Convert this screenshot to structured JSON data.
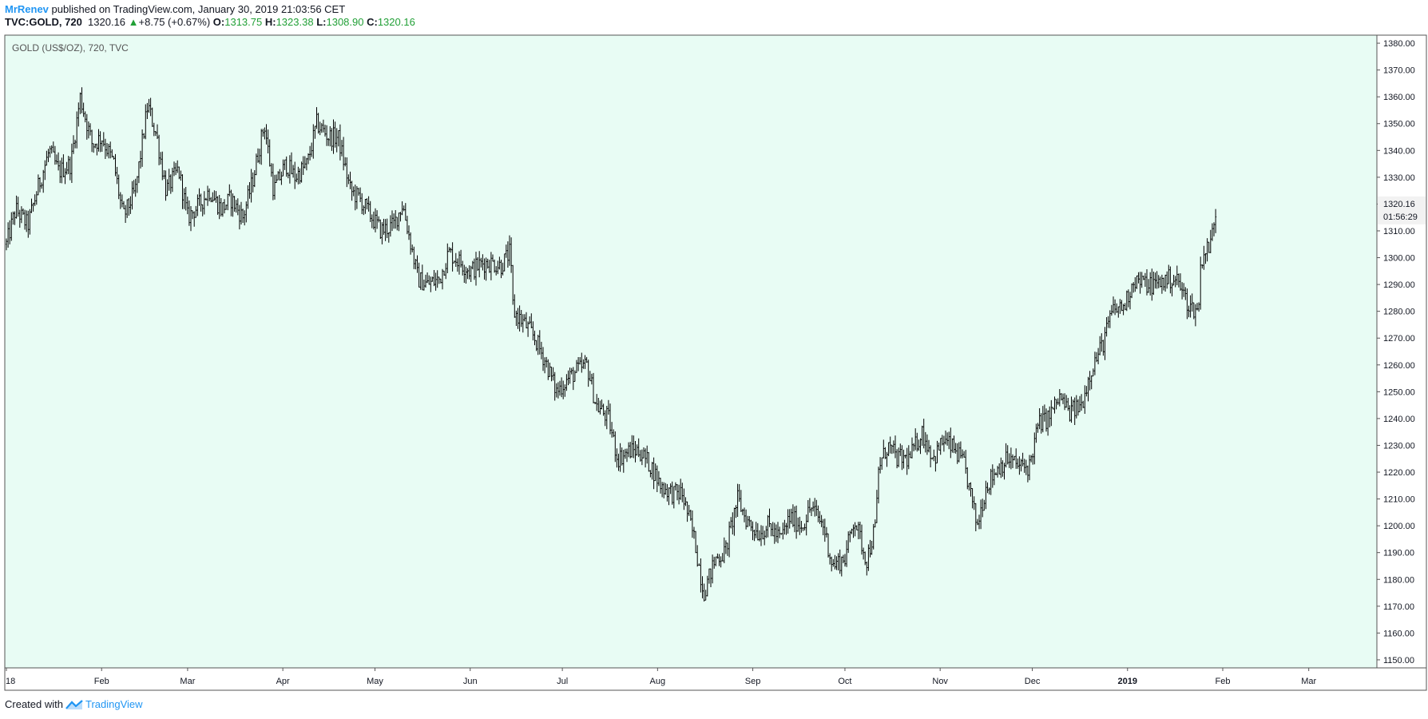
{
  "header": {
    "author": "MrRenev",
    "published_text": "published on TradingView.com, January 30, 2019 21:03:56 CET",
    "symbol": "TVC:GOLD, 720",
    "last": "1320.16",
    "change": "+8.75 (+0.67%)",
    "open_label": "O:",
    "open": "1313.75",
    "high_label": "H:",
    "high": "1323.38",
    "low_label": "L:",
    "low": "1308.90",
    "close_label": "C:",
    "close": "1320.16"
  },
  "footer": {
    "created_with": "Created with",
    "brand": "TradingView"
  },
  "colors": {
    "plot_bg": "#e8fcf4",
    "bars": "#000000",
    "price_up": "#22a037",
    "brand": "#2196f3"
  },
  "chart_data": {
    "type": "ohlc",
    "title": "GOLD (US$/OZ), 720, TVC",
    "interval": "720",
    "y_axis_ticks": [
      "1150.00",
      "1160.00",
      "1170.00",
      "1180.00",
      "1190.00",
      "1200.00",
      "1210.00",
      "1220.00",
      "1230.00",
      "1240.00",
      "1250.00",
      "1260.00",
      "1270.00",
      "1280.00",
      "1290.00",
      "1300.00",
      "1310.00",
      "1320.00",
      "1330.00",
      "1340.00",
      "1350.00",
      "1360.00",
      "1370.00",
      "1380.00"
    ],
    "ylim": [
      1147,
      1383
    ],
    "x_axis_ticks": [
      "18",
      "Feb",
      "Mar",
      "Apr",
      "May",
      "Jun",
      "Jul",
      "Aug",
      "Sep",
      "Oct",
      "Nov",
      "Dec",
      "2019",
      "Feb",
      "Mar"
    ],
    "last_price_label": "1320.16",
    "countdown_label": "01:56:29",
    "grid": false,
    "price_path": [
      [
        "2018-01-01",
        1305
      ],
      [
        "2018-01-04",
        1318
      ],
      [
        "2018-01-08",
        1312
      ],
      [
        "2018-01-11",
        1325
      ],
      [
        "2018-01-15",
        1340
      ],
      [
        "2018-01-18",
        1332
      ],
      [
        "2018-01-22",
        1335
      ],
      [
        "2018-01-25",
        1360
      ],
      [
        "2018-01-29",
        1342
      ],
      [
        "2018-02-01",
        1345
      ],
      [
        "2018-02-05",
        1335
      ],
      [
        "2018-02-08",
        1315
      ],
      [
        "2018-02-12",
        1325
      ],
      [
        "2018-02-16",
        1357
      ],
      [
        "2018-02-19",
        1345
      ],
      [
        "2018-02-22",
        1325
      ],
      [
        "2018-02-26",
        1333
      ],
      [
        "2018-03-01",
        1315
      ],
      [
        "2018-03-05",
        1320
      ],
      [
        "2018-03-08",
        1325
      ],
      [
        "2018-03-12",
        1318
      ],
      [
        "2018-03-15",
        1322
      ],
      [
        "2018-03-19",
        1315
      ],
      [
        "2018-03-22",
        1328
      ],
      [
        "2018-03-26",
        1350
      ],
      [
        "2018-03-29",
        1325
      ],
      [
        "2018-04-02",
        1335
      ],
      [
        "2018-04-05",
        1330
      ],
      [
        "2018-04-09",
        1335
      ],
      [
        "2018-04-12",
        1350
      ],
      [
        "2018-04-16",
        1345
      ],
      [
        "2018-04-19",
        1345
      ],
      [
        "2018-04-23",
        1325
      ],
      [
        "2018-04-26",
        1322
      ],
      [
        "2018-04-30",
        1315
      ],
      [
        "2018-05-03",
        1310
      ],
      [
        "2018-05-07",
        1312
      ],
      [
        "2018-05-10",
        1320
      ],
      [
        "2018-05-15",
        1292
      ],
      [
        "2018-05-18",
        1290
      ],
      [
        "2018-05-22",
        1292
      ],
      [
        "2018-05-25",
        1302
      ],
      [
        "2018-05-29",
        1298
      ],
      [
        "2018-06-01",
        1295
      ],
      [
        "2018-06-05",
        1298
      ],
      [
        "2018-06-08",
        1298
      ],
      [
        "2018-06-11",
        1297
      ],
      [
        "2018-06-14",
        1302
      ],
      [
        "2018-06-15",
        1280
      ],
      [
        "2018-06-19",
        1275
      ],
      [
        "2018-06-22",
        1270
      ],
      [
        "2018-06-26",
        1260
      ],
      [
        "2018-06-29",
        1250
      ],
      [
        "2018-07-03",
        1255
      ],
      [
        "2018-07-06",
        1258
      ],
      [
        "2018-07-09",
        1260
      ],
      [
        "2018-07-12",
        1245
      ],
      [
        "2018-07-16",
        1240
      ],
      [
        "2018-07-19",
        1225
      ],
      [
        "2018-07-23",
        1228
      ],
      [
        "2018-07-26",
        1228
      ],
      [
        "2018-07-30",
        1222
      ],
      [
        "2018-08-02",
        1215
      ],
      [
        "2018-08-06",
        1212
      ],
      [
        "2018-08-09",
        1212
      ],
      [
        "2018-08-13",
        1195
      ],
      [
        "2018-08-16",
        1175
      ],
      [
        "2018-08-20",
        1188
      ],
      [
        "2018-08-23",
        1190
      ],
      [
        "2018-08-27",
        1210
      ],
      [
        "2018-08-30",
        1202
      ],
      [
        "2018-09-03",
        1197
      ],
      [
        "2018-09-06",
        1200
      ],
      [
        "2018-09-10",
        1195
      ],
      [
        "2018-09-13",
        1203
      ],
      [
        "2018-09-17",
        1200
      ],
      [
        "2018-09-20",
        1207
      ],
      [
        "2018-09-24",
        1200
      ],
      [
        "2018-09-27",
        1185
      ],
      [
        "2018-10-01",
        1188
      ],
      [
        "2018-10-04",
        1203
      ],
      [
        "2018-10-08",
        1187
      ],
      [
        "2018-10-11",
        1200
      ],
      [
        "2018-10-12",
        1222
      ],
      [
        "2018-10-15",
        1230
      ],
      [
        "2018-10-18",
        1225
      ],
      [
        "2018-10-22",
        1225
      ],
      [
        "2018-10-26",
        1235
      ],
      [
        "2018-10-30",
        1225
      ],
      [
        "2018-11-02",
        1232
      ],
      [
        "2018-11-06",
        1228
      ],
      [
        "2018-11-09",
        1222
      ],
      [
        "2018-11-13",
        1200
      ],
      [
        "2018-11-16",
        1215
      ],
      [
        "2018-11-20",
        1222
      ],
      [
        "2018-11-23",
        1225
      ],
      [
        "2018-11-27",
        1222
      ],
      [
        "2018-11-30",
        1222
      ],
      [
        "2018-12-03",
        1238
      ],
      [
        "2018-12-06",
        1240
      ],
      [
        "2018-12-10",
        1248
      ],
      [
        "2018-12-13",
        1242
      ],
      [
        "2018-12-17",
        1245
      ],
      [
        "2018-12-20",
        1258
      ],
      [
        "2018-12-24",
        1268
      ],
      [
        "2018-12-27",
        1280
      ],
      [
        "2018-12-31",
        1282
      ],
      [
        "2019-01-03",
        1292
      ],
      [
        "2019-01-07",
        1290
      ],
      [
        "2019-01-10",
        1290
      ],
      [
        "2019-01-14",
        1292
      ],
      [
        "2019-01-17",
        1292
      ],
      [
        "2019-01-21",
        1282
      ],
      [
        "2019-01-24",
        1280
      ],
      [
        "2019-01-25",
        1300
      ],
      [
        "2019-01-28",
        1305
      ],
      [
        "2019-01-30",
        1320
      ]
    ]
  }
}
